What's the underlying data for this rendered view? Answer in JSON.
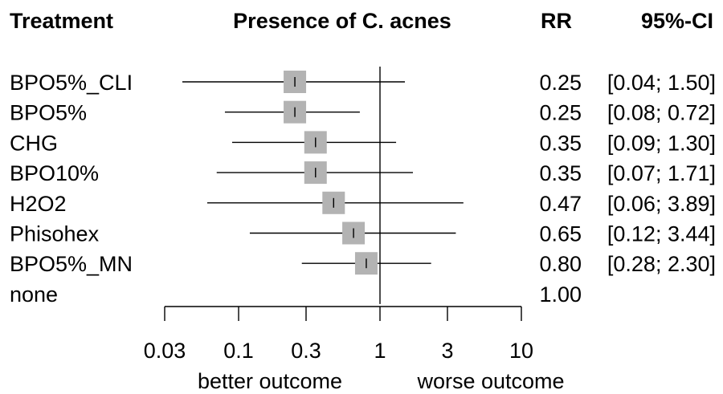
{
  "headers": {
    "treatment": "Treatment",
    "title": "Presence of C. acnes",
    "rr": "RR",
    "ci": "95%-CI"
  },
  "chart_data": {
    "type": "forest",
    "title": "Presence of C. acnes",
    "scale": "log",
    "xlim": [
      0.03,
      10
    ],
    "x_ticks": [
      0.03,
      0.1,
      0.3,
      1,
      3,
      10
    ],
    "x_tick_labels": [
      "0.03",
      "0.1",
      "0.3",
      "1",
      "3",
      "10"
    ],
    "reference_line": 1,
    "direction_labels": {
      "left": "better outcome",
      "right": "worse outcome"
    },
    "marker_color": "#b3b3b3",
    "rows": [
      {
        "treatment": "BPO5%_CLI",
        "rr": 0.25,
        "lower": 0.04,
        "upper": 1.5,
        "rr_label": "0.25",
        "ci_label": "[0.04; 1.50]"
      },
      {
        "treatment": "BPO5%",
        "rr": 0.25,
        "lower": 0.08,
        "upper": 0.72,
        "rr_label": "0.25",
        "ci_label": "[0.08; 0.72]"
      },
      {
        "treatment": "CHG",
        "rr": 0.35,
        "lower": 0.09,
        "upper": 1.3,
        "rr_label": "0.35",
        "ci_label": "[0.09; 1.30]"
      },
      {
        "treatment": "BPO10%",
        "rr": 0.35,
        "lower": 0.07,
        "upper": 1.71,
        "rr_label": "0.35",
        "ci_label": "[0.07; 1.71]"
      },
      {
        "treatment": "H2O2",
        "rr": 0.47,
        "lower": 0.06,
        "upper": 3.89,
        "rr_label": "0.47",
        "ci_label": "[0.06; 3.89]"
      },
      {
        "treatment": "Phisohex",
        "rr": 0.65,
        "lower": 0.12,
        "upper": 3.44,
        "rr_label": "0.65",
        "ci_label": "[0.12; 3.44]"
      },
      {
        "treatment": "BPO5%_MN",
        "rr": 0.8,
        "lower": 0.28,
        "upper": 2.3,
        "rr_label": "0.80",
        "ci_label": "[0.28; 2.30]"
      },
      {
        "treatment": "none",
        "rr": 1.0,
        "rr_label": "1.00",
        "ci_label": ""
      }
    ]
  }
}
